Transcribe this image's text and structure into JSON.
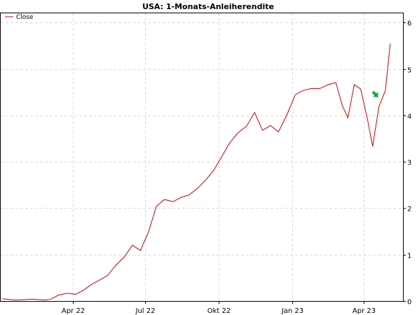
{
  "chart_data": {
    "type": "line",
    "title": "USA: 1-Monats-Anleiherendite",
    "xlabel": "",
    "ylabel": "",
    "ylim": [
      0,
      6.2
    ],
    "y_ticks": [
      0,
      1,
      2,
      3,
      4,
      5,
      6
    ],
    "y_axis_side": "right",
    "x_ticks": [
      {
        "label": "Apr 22",
        "date": "2022-04-01"
      },
      {
        "label": "Jul 22",
        "date": "2022-07-01"
      },
      {
        "label": "Okt 22",
        "date": "2022-10-01"
      },
      {
        "label": "Jan 23",
        "date": "2023-01-01"
      },
      {
        "label": "Apr 23",
        "date": "2023-04-01"
      }
    ],
    "xlim": [
      "2022-01-01",
      "2023-05-20"
    ],
    "grid": true,
    "legend_position": "top-left",
    "colors": {
      "line": "#cc0000",
      "grid": "#d9d9d9",
      "arrow": "#1aa84a"
    },
    "annotation": {
      "type": "arrow",
      "date": "2023-04-20",
      "value": 4.45
    },
    "series": [
      {
        "name": "Close",
        "points": [
          [
            "2022-01-03",
            0.05
          ],
          [
            "2022-01-20",
            0.04
          ],
          [
            "2022-02-10",
            0.04
          ],
          [
            "2022-02-25",
            0.03
          ],
          [
            "2022-03-05",
            0.05
          ],
          [
            "2022-03-15",
            0.14
          ],
          [
            "2022-03-25",
            0.18
          ],
          [
            "2022-04-05",
            0.15
          ],
          [
            "2022-04-15",
            0.22
          ],
          [
            "2022-04-25",
            0.35
          ],
          [
            "2022-05-05",
            0.45
          ],
          [
            "2022-05-15",
            0.55
          ],
          [
            "2022-05-25",
            0.75
          ],
          [
            "2022-06-05",
            0.95
          ],
          [
            "2022-06-15",
            1.2
          ],
          [
            "2022-06-25",
            1.1
          ],
          [
            "2022-07-05",
            1.5
          ],
          [
            "2022-07-15",
            2.05
          ],
          [
            "2022-07-25",
            2.2
          ],
          [
            "2022-08-05",
            2.15
          ],
          [
            "2022-08-15",
            2.25
          ],
          [
            "2022-08-25",
            2.3
          ],
          [
            "2022-09-05",
            2.45
          ],
          [
            "2022-09-15",
            2.6
          ],
          [
            "2022-09-25",
            2.8
          ],
          [
            "2022-10-05",
            3.1
          ],
          [
            "2022-10-15",
            3.4
          ],
          [
            "2022-10-25",
            3.6
          ],
          [
            "2022-11-05",
            3.75
          ],
          [
            "2022-11-15",
            4.05
          ],
          [
            "2022-11-25",
            3.7
          ],
          [
            "2022-12-05",
            3.8
          ],
          [
            "2022-12-15",
            3.65
          ],
          [
            "2022-12-25",
            4.0
          ],
          [
            "2023-01-05",
            4.45
          ],
          [
            "2023-01-15",
            4.55
          ],
          [
            "2023-01-25",
            4.6
          ],
          [
            "2023-02-05",
            4.6
          ],
          [
            "2023-02-15",
            4.65
          ],
          [
            "2023-02-25",
            4.7
          ],
          [
            "2023-03-05",
            4.2
          ],
          [
            "2023-03-12",
            3.95
          ],
          [
            "2023-03-20",
            4.65
          ],
          [
            "2023-03-28",
            4.55
          ],
          [
            "2023-04-05",
            3.95
          ],
          [
            "2023-04-12",
            3.35
          ],
          [
            "2023-04-20",
            4.2
          ],
          [
            "2023-04-28",
            4.55
          ],
          [
            "2023-05-04",
            5.55
          ]
        ]
      }
    ]
  }
}
